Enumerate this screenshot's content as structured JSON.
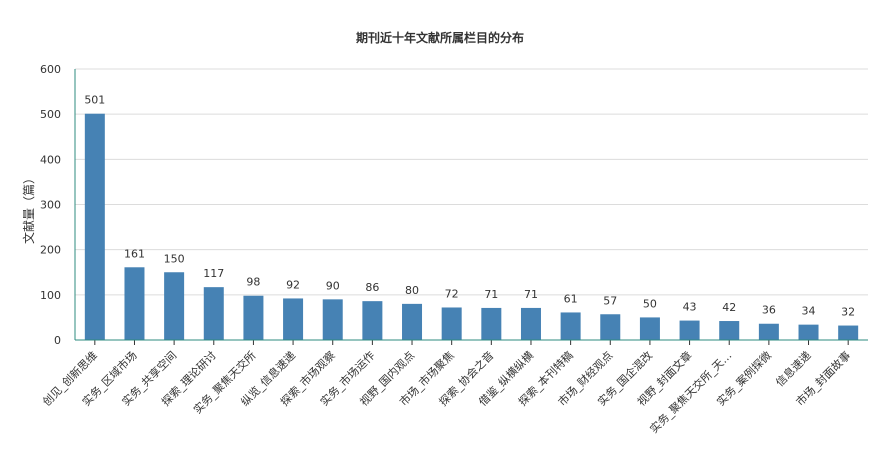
{
  "chart_data": {
    "type": "bar",
    "title": "期刊近十年文献所属栏目的分布",
    "xlabel": "",
    "ylabel": "文献量（篇）",
    "ylim": [
      0,
      600
    ],
    "yticks": [
      0,
      100,
      200,
      300,
      400,
      500,
      600
    ],
    "grid": true,
    "categories": [
      "创见_创新思维",
      "实务_区域市场",
      "实务_共享空间",
      "探索_理论研讨",
      "实务_聚焦天交所",
      "纵览_信息速递",
      "探索_市场观察",
      "实务_市场运作",
      "视野_国内观点",
      "市场_市场聚焦",
      "探索_协会之音",
      "借鉴_纵横纵横",
      "探索_本刊特稿",
      "市场_财经观点",
      "实务_国企混改",
      "视野_封面文章",
      "实务_聚焦天交所_天…",
      "实务_案例探微",
      "信息速递",
      "市场_封面故事"
    ],
    "values": [
      501,
      161,
      150,
      117,
      98,
      92,
      90,
      86,
      80,
      72,
      71,
      71,
      61,
      57,
      50,
      43,
      42,
      36,
      34,
      32
    ],
    "colors": {
      "bar": "#4682b4",
      "axis": "#2e8b7f",
      "grid": "#dcdcdc"
    }
  }
}
